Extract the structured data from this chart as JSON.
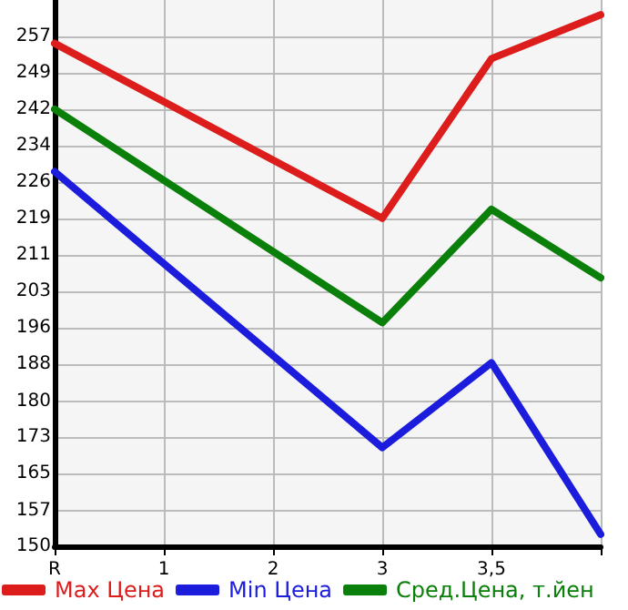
{
  "chart_data": {
    "type": "line",
    "categories": [
      "R",
      "1",
      "2",
      "3",
      "3,5",
      null
    ],
    "series": [
      {
        "name": "Max Цена",
        "color": "#dd1c1c",
        "values": [
          255.5,
          null,
          null,
          218.8,
          252.3,
          261.5
        ]
      },
      {
        "name": "Min Цена",
        "color": "#1c1cdd",
        "values": [
          228.6,
          null,
          null,
          170.7,
          188.5,
          152.5
        ]
      },
      {
        "name": "Сред.Цена, т.йен",
        "color": "#0a800a",
        "values": [
          241.7,
          null,
          null,
          196.9,
          220.7,
          206.3
        ]
      }
    ],
    "ylim": [
      150,
      264.6
    ],
    "yticks": [
      150,
      {
        "value": 157.4,
        "label": "157"
      },
      {
        "value": 165.3,
        "label": "165"
      },
      {
        "value": 172.9,
        "label": "173"
      },
      {
        "value": 180.4,
        "label": "180"
      },
      {
        "value": 188.2,
        "label": "188"
      },
      {
        "value": 195.9,
        "label": "196"
      },
      {
        "value": 203.5,
        "label": "203"
      },
      {
        "value": 211.1,
        "label": "211"
      },
      {
        "value": 218.8,
        "label": "219"
      },
      {
        "value": 226.4,
        "label": "226"
      },
      {
        "value": 234.1,
        "label": "234"
      },
      {
        "value": 241.7,
        "label": "242"
      },
      {
        "value": 249.4,
        "label": "249"
      },
      257
    ],
    "grid": true,
    "legend": "bottom",
    "marker": "none",
    "line_style": "solid"
  }
}
